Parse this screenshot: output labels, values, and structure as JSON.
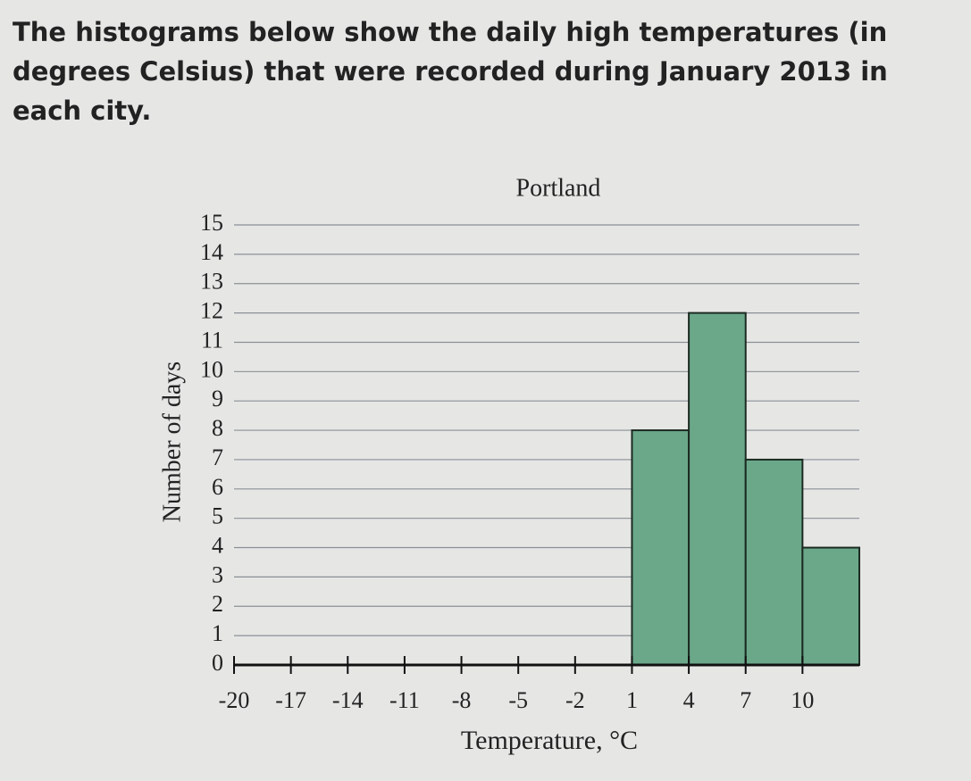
{
  "question": "The histograms below show the daily high temperatures (in degrees Celsius) that were recorded during January 2013 in each city.",
  "chart_data": {
    "type": "histogram",
    "title": "Portland",
    "x_label": "Temperature, °C",
    "y_label": "Number of days",
    "bins": [
      -20,
      -17,
      -14,
      -11,
      -8,
      -5,
      -2,
      1,
      4,
      7,
      10,
      13
    ],
    "values": [
      0,
      0,
      0,
      0,
      0,
      0,
      0,
      8,
      12,
      7,
      4
    ],
    "color": "#6ba88a",
    "xlim": [
      -20,
      13
    ],
    "xticks": [
      -20,
      -17,
      -14,
      -11,
      -8,
      -5,
      -2,
      1,
      4,
      7,
      10
    ],
    "ylim": [
      0,
      15
    ],
    "yticks": [
      0,
      1,
      2,
      3,
      4,
      5,
      6,
      7,
      8,
      9,
      10,
      11,
      12,
      13,
      14,
      15
    ],
    "grid": true
  }
}
